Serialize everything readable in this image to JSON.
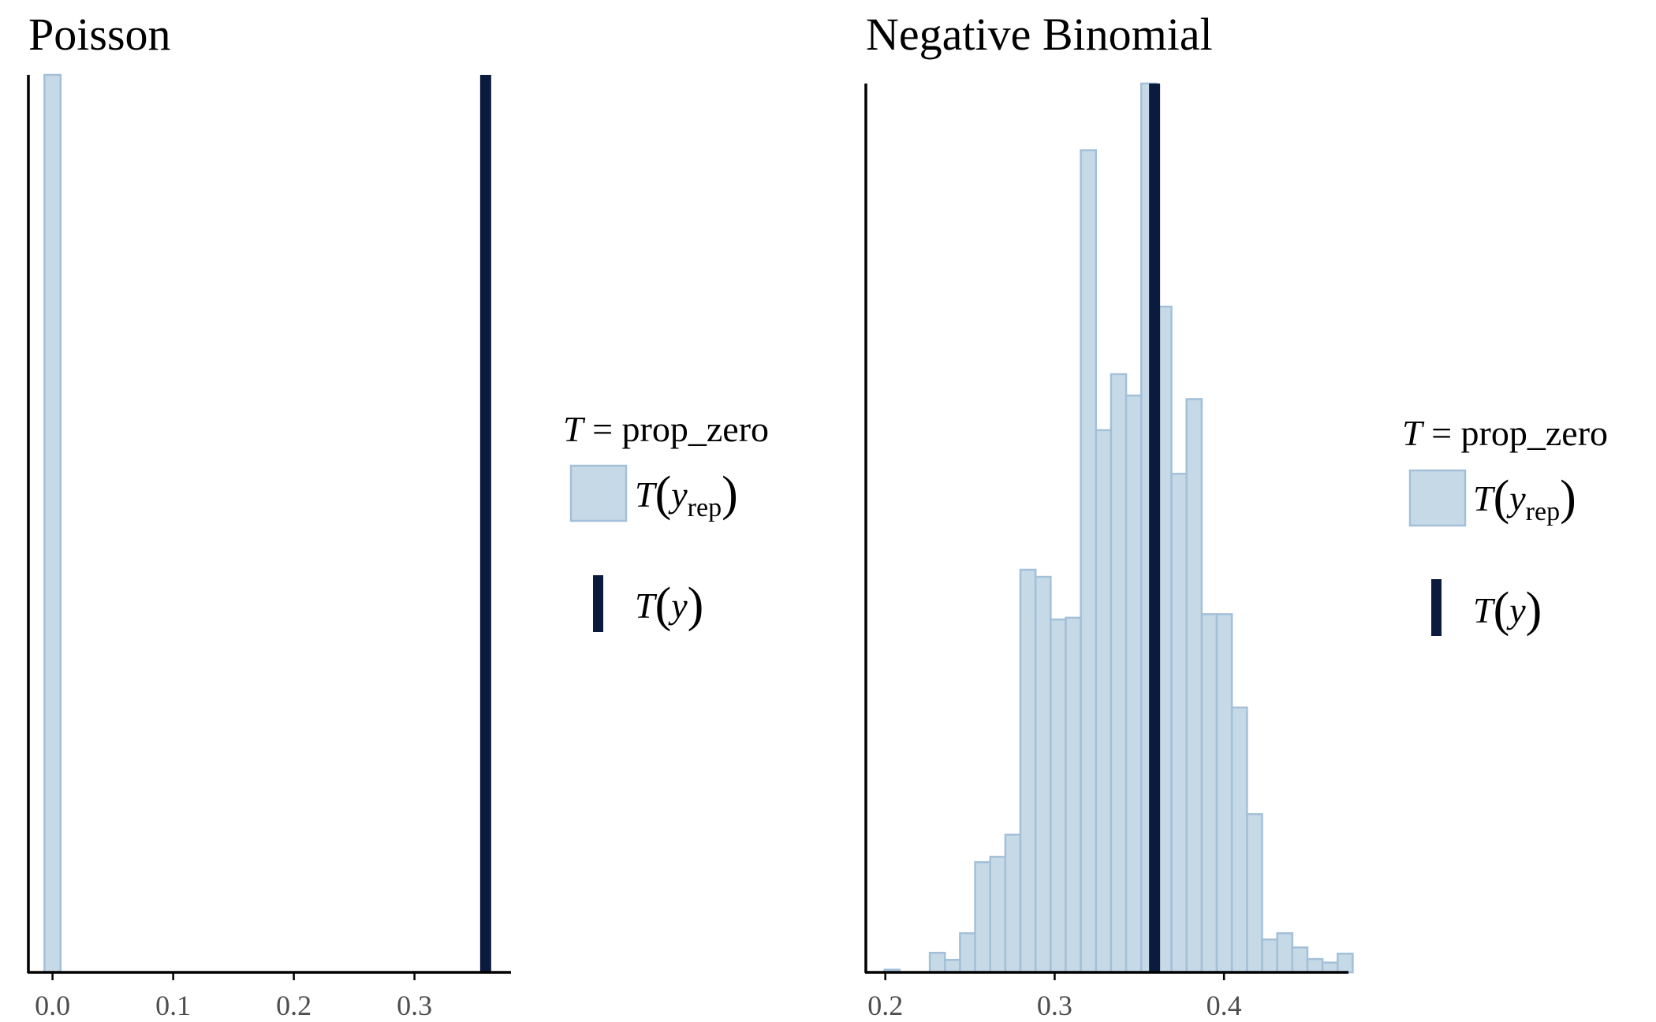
{
  "colors": {
    "rep_fill": "#c6d9e7",
    "rep_stroke": "#a3c0d8",
    "obs": "#0b1b3d"
  },
  "chart_data": [
    {
      "type": "bar",
      "title": "Poisson",
      "statistic": "prop_zero",
      "xlim": [
        -0.02,
        0.38
      ],
      "xticks": [
        0.0,
        0.1,
        0.2,
        0.3
      ],
      "xtick_labels": [
        "0.0",
        "0.1",
        "0.2",
        "0.3"
      ],
      "ylim": [
        0,
        1.0
      ],
      "bins": [
        {
          "x0": -0.0067,
          "x1": 0.0067,
          "count": 1.0
        }
      ],
      "observed": 0.359,
      "legend": {
        "title_symbol": "T",
        "title_rest": " = prop_zero",
        "items": [
          {
            "symbol": "T",
            "arg": "y",
            "sub": "rep"
          },
          {
            "symbol": "T",
            "arg": "y",
            "sub": ""
          }
        ]
      }
    },
    {
      "type": "bar",
      "title": "Negative Binomial",
      "statistic": "prop_zero",
      "xlim": [
        0.1885,
        0.4735
      ],
      "xticks": [
        0.2,
        0.3,
        0.4
      ],
      "xtick_labels": [
        "0.2",
        "0.3",
        "0.4"
      ],
      "ylim": [
        0,
        100
      ],
      "bin_start": 0.1995,
      "bin_width": 0.00892,
      "counts": [
        0.3,
        0,
        0,
        2.2,
        1.4,
        4.4,
        12.4,
        13.0,
        15.5,
        45.3,
        44.5,
        39.7,
        39.9,
        92.5,
        61.0,
        67.3,
        64.9,
        100.0,
        74.9,
        56.1,
        64.5,
        40.3,
        40.3,
        29.8,
        17.8,
        3.7,
        4.4,
        2.8,
        1.5,
        1.1,
        2.1
      ],
      "observed": 0.359,
      "legend": {
        "title_symbol": "T",
        "title_rest": " = prop_zero",
        "items": [
          {
            "symbol": "T",
            "arg": "y",
            "sub": "rep"
          },
          {
            "symbol": "T",
            "arg": "y",
            "sub": ""
          }
        ]
      }
    }
  ]
}
